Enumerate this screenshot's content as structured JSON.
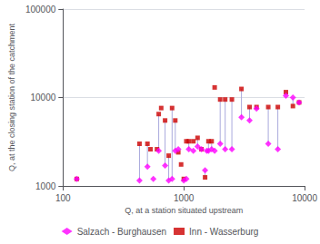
{
  "chart_data": {
    "type": "scatter",
    "xlabel": "Q, at a station situated upstream",
    "ylabel": "Q, at the closing station of the catchment",
    "log": true,
    "xlim": [
      100,
      10000
    ],
    "ylim": [
      1000,
      100000
    ],
    "xticks": [
      100,
      1000,
      10000
    ],
    "yticks": [
      1000,
      10000,
      100000
    ],
    "grid": "y",
    "legend": "bottom",
    "series": [
      {
        "name": "Salzach - Burghausen",
        "color": "#ff00ff",
        "marker": "diamond",
        "values": [
          [
            130,
            1200
          ],
          [
            430,
            1150
          ],
          [
            500,
            1650
          ],
          [
            560,
            1200
          ],
          [
            620,
            2500
          ],
          [
            700,
            1700
          ],
          [
            750,
            1150
          ],
          [
            800,
            1200
          ],
          [
            850,
            2500
          ],
          [
            900,
            2600
          ],
          [
            1000,
            1150
          ],
          [
            1050,
            1200
          ],
          [
            1100,
            2600
          ],
          [
            1200,
            2500
          ],
          [
            1300,
            2800
          ],
          [
            1400,
            2600
          ],
          [
            1500,
            1500
          ],
          [
            1550,
            2500
          ],
          [
            1600,
            2500
          ],
          [
            1700,
            2600
          ],
          [
            1800,
            2500
          ],
          [
            2000,
            3000
          ],
          [
            2200,
            2600
          ],
          [
            2500,
            2600
          ],
          [
            3000,
            6000
          ],
          [
            3500,
            5500
          ],
          [
            4000,
            7500
          ],
          [
            5000,
            3000
          ],
          [
            6000,
            2600
          ],
          [
            7000,
            10500
          ],
          [
            8000,
            10000
          ],
          [
            9000,
            8800
          ]
        ]
      },
      {
        "name": "Inn - Wasserburg",
        "color": "#cc0000",
        "marker": "square",
        "values": [
          [
            130,
            1200
          ],
          [
            430,
            3000
          ],
          [
            500,
            3000
          ],
          [
            530,
            2600
          ],
          [
            600,
            2600
          ],
          [
            620,
            6500
          ],
          [
            650,
            7600
          ],
          [
            700,
            5500
          ],
          [
            750,
            2200
          ],
          [
            800,
            7600
          ],
          [
            850,
            5500
          ],
          [
            900,
            2400
          ],
          [
            950,
            1750
          ],
          [
            1000,
            1200
          ],
          [
            1050,
            3200
          ],
          [
            1100,
            3200
          ],
          [
            1200,
            3200
          ],
          [
            1300,
            3500
          ],
          [
            1400,
            2600
          ],
          [
            1500,
            1250
          ],
          [
            1600,
            3200
          ],
          [
            1700,
            3200
          ],
          [
            1800,
            13000
          ],
          [
            2000,
            9500
          ],
          [
            2200,
            9500
          ],
          [
            2500,
            9500
          ],
          [
            3000,
            12500
          ],
          [
            3500,
            7800
          ],
          [
            4000,
            7800
          ],
          [
            5000,
            7800
          ],
          [
            6000,
            7800
          ],
          [
            7000,
            11500
          ],
          [
            8000,
            8000
          ],
          [
            9000,
            8800
          ]
        ]
      }
    ],
    "segments": {
      "color": "#aaaadd",
      "values": [
        [
          [
            130,
            1200
          ],
          [
            130,
            1200
          ]
        ],
        [
          [
            430,
            1150
          ],
          [
            430,
            3000
          ]
        ],
        [
          [
            500,
            1650
          ],
          [
            500,
            3000
          ]
        ],
        [
          [
            620,
            2500
          ],
          [
            620,
            6500
          ]
        ],
        [
          [
            700,
            1700
          ],
          [
            700,
            5500
          ]
        ],
        [
          [
            750,
            1150
          ],
          [
            750,
            2200
          ]
        ],
        [
          [
            800,
            1200
          ],
          [
            800,
            7600
          ]
        ],
        [
          [
            850,
            2500
          ],
          [
            850,
            5500
          ]
        ],
        [
          [
            900,
            2600
          ],
          [
            900,
            2400
          ]
        ],
        [
          [
            1000,
            1150
          ],
          [
            1000,
            1200
          ]
        ],
        [
          [
            1100,
            2600
          ],
          [
            1100,
            3200
          ]
        ],
        [
          [
            1300,
            2800
          ],
          [
            1300,
            3500
          ]
        ],
        [
          [
            1400,
            2600
          ],
          [
            1400,
            2600
          ]
        ],
        [
          [
            1500,
            1500
          ],
          [
            1500,
            1250
          ]
        ],
        [
          [
            1600,
            2500
          ],
          [
            1600,
            3200
          ]
        ],
        [
          [
            1700,
            2600
          ],
          [
            1700,
            3200
          ]
        ],
        [
          [
            2000,
            3000
          ],
          [
            2000,
            9500
          ]
        ],
        [
          [
            2200,
            2600
          ],
          [
            2200,
            9500
          ]
        ],
        [
          [
            2500,
            2600
          ],
          [
            2500,
            9500
          ]
        ],
        [
          [
            3000,
            6000
          ],
          [
            3000,
            12500
          ]
        ],
        [
          [
            3500,
            5500
          ],
          [
            3500,
            7800
          ]
        ],
        [
          [
            4000,
            7500
          ],
          [
            4000,
            7800
          ]
        ],
        [
          [
            5000,
            3000
          ],
          [
            5000,
            7800
          ]
        ],
        [
          [
            6000,
            2600
          ],
          [
            6000,
            7800
          ]
        ],
        [
          [
            7000,
            10500
          ],
          [
            7000,
            11500
          ]
        ],
        [
          [
            8000,
            10000
          ],
          [
            8000,
            8000
          ]
        ],
        [
          [
            9000,
            8800
          ],
          [
            9000,
            8800
          ]
        ]
      ]
    }
  }
}
